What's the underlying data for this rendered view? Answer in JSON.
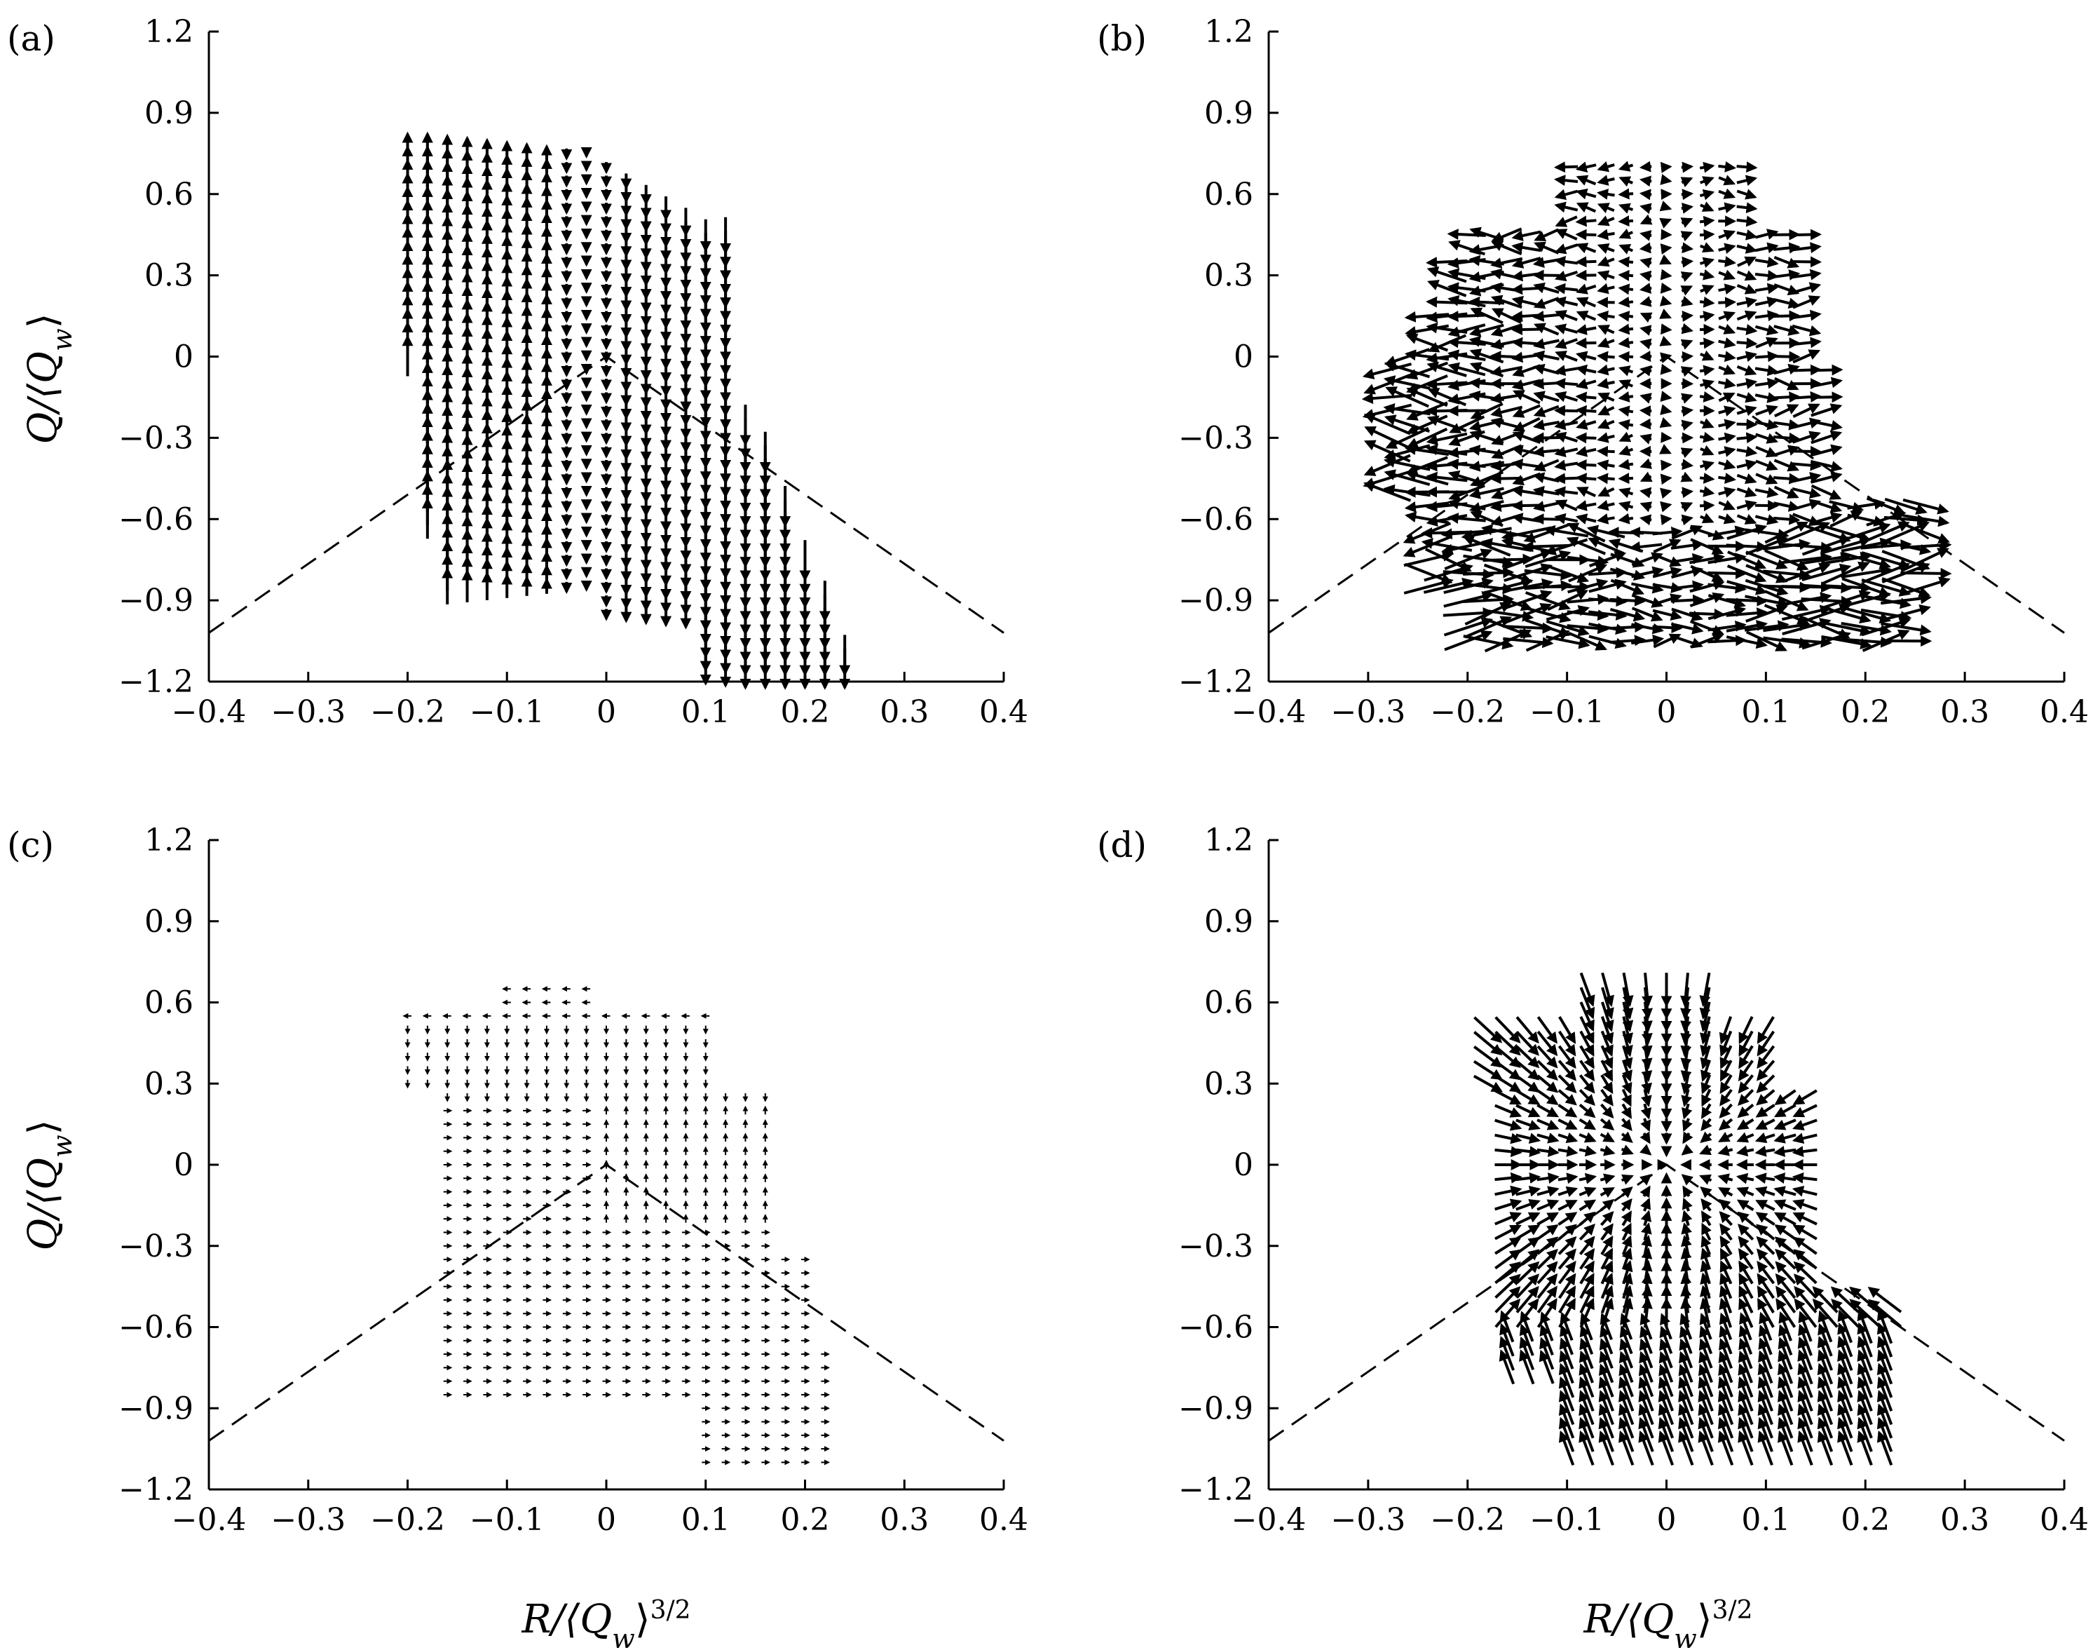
{
  "chart_data": [
    {
      "type": "scatter",
      "panel": "(a)",
      "xlabel": "",
      "ylabel": "Q/⟨Q_w⟩",
      "xlim": [
        -0.4,
        0.4
      ],
      "ylim": [
        -1.2,
        1.2
      ],
      "xticks": [
        "−0.4",
        "−0.3",
        "−0.2",
        "−0.1",
        "0",
        "0.1",
        "0.2",
        "0.3",
        "0.4"
      ],
      "yticks": [
        "1.2",
        "0.9",
        "0.6",
        "0.3",
        "0",
        "−0.3",
        "−0.6",
        "−0.9",
        "−1.2"
      ],
      "field": "vertical",
      "region": {
        "topLeft": [
          -0.2,
          0.62
        ],
        "topRight": [
          0.08,
          0.55
        ],
        "top": 0.82,
        "rightEdge": [
          [
            0.0,
            0.7
          ],
          [
            0.14,
            0.3
          ],
          [
            0.15,
            -0.3
          ],
          [
            0.2,
            -0.7
          ],
          [
            0.24,
            -1.2
          ]
        ],
        "leftEdge": [
          [
            -0.2,
            0.6
          ],
          [
            -0.18,
            0.0
          ],
          [
            -0.17,
            -0.6
          ],
          [
            -0.16,
            -0.78
          ]
        ],
        "bottom": -0.85
      },
      "separatrix": "dashed"
    },
    {
      "type": "scatter",
      "panel": "(b)",
      "xlabel": "",
      "ylabel": "",
      "xlim": [
        -0.4,
        0.4
      ],
      "ylim": [
        -1.2,
        1.2
      ],
      "xticks": [
        "−0.4",
        "−0.3",
        "−0.2",
        "−0.1",
        "0",
        "0.1",
        "0.2",
        "0.3",
        "0.4"
      ],
      "yticks": [
        "1.2",
        "0.9",
        "0.6",
        "0.3",
        "0",
        "−0.3",
        "−0.6",
        "−0.9",
        "−1.2"
      ],
      "field": "mixed-horizontal",
      "separatrix": "dashed"
    },
    {
      "type": "scatter",
      "panel": "(c)",
      "xlabel": "R/⟨Q_w⟩^{3/2}",
      "ylabel": "Q/⟨Q_w⟩",
      "xlim": [
        -0.4,
        0.4
      ],
      "ylim": [
        -1.2,
        1.2
      ],
      "xticks": [
        "−0.4",
        "−0.3",
        "−0.2",
        "−0.1",
        "0",
        "0.1",
        "0.2",
        "0.3",
        "0.4"
      ],
      "yticks": [
        "1.2",
        "0.9",
        "0.6",
        "0.3",
        "0",
        "−0.3",
        "−0.6",
        "−0.9",
        "−1.2"
      ],
      "field": "small-triangles",
      "separatrix": "dashed"
    },
    {
      "type": "scatter",
      "panel": "(d)",
      "xlabel": "R/⟨Q_w⟩^{3/2}",
      "ylabel": "",
      "xlim": [
        -0.4,
        0.4
      ],
      "ylim": [
        -1.2,
        1.2
      ],
      "xticks": [
        "−0.4",
        "−0.3",
        "−0.2",
        "−0.1",
        "0",
        "0.1",
        "0.2",
        "0.3",
        "0.4"
      ],
      "yticks": [
        "1.2",
        "0.9",
        "0.6",
        "0.3",
        "0",
        "−0.3",
        "−0.6",
        "−0.9",
        "−1.2"
      ],
      "field": "radial-converging",
      "separatrix": "dashed"
    }
  ],
  "labels": {
    "a": "(a)",
    "b": "(b)",
    "c": "(c)",
    "d": "(d)",
    "ylabel_q": "Q/⟨Q",
    "ylabel_sub": "w",
    "ylabel_close": "⟩",
    "xlabel_r": "R/⟨Q",
    "xlabel_sub": "w",
    "xlabel_close": "⟩",
    "xlabel_sup": "3/2"
  }
}
